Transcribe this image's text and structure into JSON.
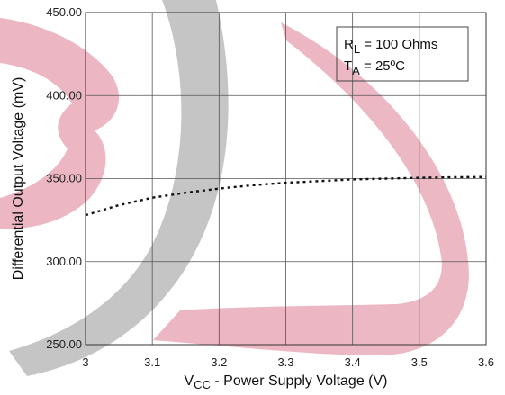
{
  "chart_data": {
    "type": "line",
    "xlabel": {
      "prefix": "V",
      "sub": "CC",
      "rest": " - Power Supply Voltage (V)"
    },
    "ylabel": "Differential Output Voltage (mV)",
    "xlim": [
      3.0,
      3.6
    ],
    "ylim": [
      250,
      450
    ],
    "x_ticks": [
      "3",
      "3.1",
      "3.2",
      "3.3",
      "3.4",
      "3.5",
      "3.6"
    ],
    "y_ticks": [
      "450.00",
      "400.00",
      "350.00",
      "300.00",
      "250.00"
    ],
    "grid": true,
    "legend": {
      "position": "top-right",
      "line1": {
        "prefix": "R",
        "sub": "L",
        "rest": " = 100 Ohms"
      },
      "line2": {
        "prefix": "T",
        "sub": "A",
        "rest": " = 25ºC"
      }
    },
    "series": [
      {
        "style": "dotted",
        "color": "#111111",
        "x": [
          3.0,
          3.05,
          3.1,
          3.15,
          3.2,
          3.25,
          3.3,
          3.35,
          3.4,
          3.45,
          3.5,
          3.55,
          3.6
        ],
        "y": [
          328,
          334,
          338.5,
          341.5,
          344,
          346,
          347.5,
          348.5,
          349.5,
          350,
          350.5,
          350.8,
          351
        ]
      }
    ]
  },
  "watermark": {
    "colors": {
      "pink": "#eab0bc",
      "gray": "#bfbfbf"
    }
  }
}
